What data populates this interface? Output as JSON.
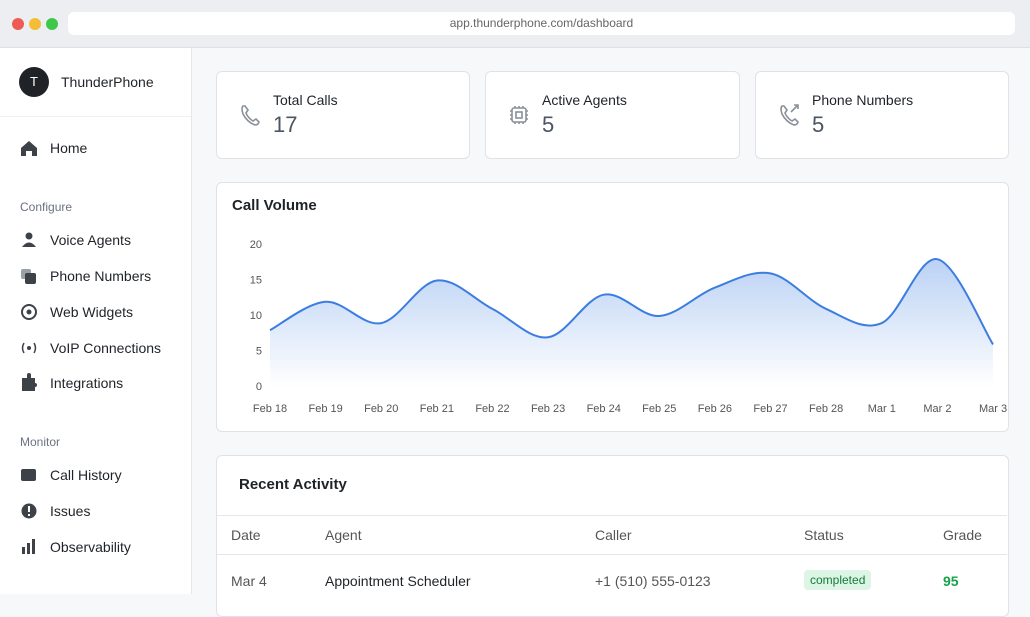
{
  "browser": {
    "url": "app.thunderphone.com/dashboard"
  },
  "sidebar": {
    "brand_initial": "T",
    "brand": "ThunderPhone",
    "home": "Home",
    "sections": [
      {
        "title": "Configure",
        "items": [
          "Voice Agents",
          "Phone Numbers",
          "Web Widgets",
          "VoIP Connections",
          "Integrations"
        ]
      },
      {
        "title": "Monitor",
        "items": [
          "Call History",
          "Issues",
          "Observability"
        ]
      }
    ]
  },
  "stats": [
    {
      "label": "Total Calls",
      "value": 17
    },
    {
      "label": "Active Agents",
      "value": 5
    },
    {
      "label": "Phone Numbers",
      "value": 5
    }
  ],
  "chart_data": {
    "type": "line",
    "title": "Call Volume",
    "categories": [
      "Feb 18",
      "Feb 19",
      "Feb 20",
      "Feb 21",
      "Feb 22",
      "Feb 23",
      "Feb 24",
      "Feb 25",
      "Feb 26",
      "Feb 27",
      "Feb 28",
      "Mar 1",
      "Mar 2",
      "Mar 3"
    ],
    "values": [
      8,
      12,
      9,
      15,
      11,
      7,
      13,
      10,
      14,
      16,
      11,
      9,
      18,
      6
    ],
    "color": "#3b7de0",
    "area": true,
    "ylim": [
      0,
      20
    ],
    "yticks": [
      0,
      5,
      10,
      15,
      20
    ],
    "grid": false
  },
  "activity": {
    "title": "Recent Activity",
    "columns": [
      "Date",
      "Agent",
      "Caller",
      "Status",
      "Grade"
    ],
    "rows": [
      [
        "Mar 4",
        "Appointment Scheduler",
        "+1 (510) 555-0123",
        "completed",
        95
      ]
    ]
  }
}
